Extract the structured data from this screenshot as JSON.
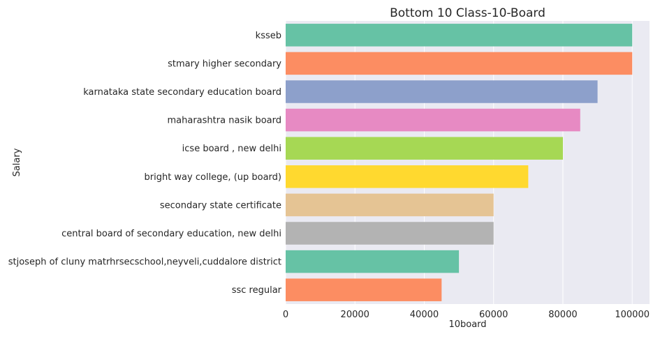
{
  "chart_data": {
    "type": "bar",
    "orientation": "horizontal",
    "title": "Bottom 10 Class-10-Board",
    "xlabel": "10board",
    "ylabel": "Salary",
    "xlim": [
      0,
      105000
    ],
    "xticks": [
      0,
      20000,
      40000,
      60000,
      80000,
      100000
    ],
    "grid": true,
    "categories": [
      "ksseb",
      "stmary higher secondary",
      "karnataka state secondary education board",
      "maharashtra nasik board",
      "icse board , new delhi",
      "bright way college, (up board)",
      "secondary state certificate",
      "central board of secondary education, new delhi",
      "stjoseph of cluny matrhrsecschool,neyveli,cuddalore district",
      "ssc regular"
    ],
    "values": [
      100000,
      100000,
      90000,
      85000,
      80000,
      70000,
      60000,
      60000,
      50000,
      45000
    ],
    "colors": [
      "#66c2a5",
      "#fc8d62",
      "#8da0cb",
      "#e78ac3",
      "#a6d854",
      "#ffd92f",
      "#e5c494",
      "#b3b3b3",
      "#66c2a5",
      "#fc8d62"
    ],
    "background": "#eaeaf2"
  }
}
